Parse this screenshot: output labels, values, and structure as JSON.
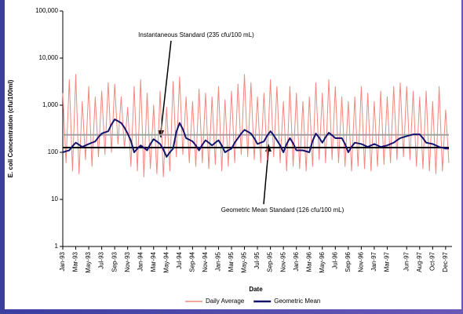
{
  "chart_data": {
    "type": "line",
    "y_label": "E. coli Concentration (cfu/100ml)",
    "x_label": "Date",
    "log_y": true,
    "ylim": [
      1,
      100000
    ],
    "yticks": [
      1,
      10,
      100,
      {
        "value": 1000,
        "label": "1,000"
      },
      {
        "value": 10000,
        "label": "10,000"
      },
      {
        "value": 100000,
        "label": "100,000"
      }
    ],
    "categories": [
      "Jan-93",
      null,
      null,
      null,
      "Mar-93",
      null,
      null,
      null,
      "May-93",
      null,
      null,
      null,
      "Jul-93",
      null,
      null,
      null,
      "Sep-93",
      null,
      null,
      null,
      "Nov-93",
      null,
      null,
      null,
      "Jan-94",
      null,
      null,
      null,
      "Mar-94",
      null,
      null,
      null,
      "May-94",
      null,
      null,
      null,
      "Jul-94",
      null,
      null,
      null,
      "Sep-94",
      null,
      null,
      null,
      "Nov-94",
      null,
      null,
      null,
      "Jan-95",
      null,
      null,
      null,
      "Mar-95",
      null,
      null,
      null,
      "May-95",
      null,
      null,
      null,
      "Jul-95",
      null,
      null,
      null,
      "Sep-95",
      null,
      null,
      null,
      "Nov-95",
      null,
      null,
      null,
      "Jan-96",
      null,
      null,
      null,
      "Mar-96",
      null,
      null,
      null,
      "May-96",
      null,
      null,
      null,
      "Jul-96",
      null,
      null,
      null,
      "Sep-96",
      null,
      null,
      null,
      "Nov-96",
      null,
      null,
      null,
      "Jan-97",
      null,
      null,
      null,
      "Mar-97",
      null,
      null,
      null,
      null,
      null,
      "Jun-97",
      null,
      null,
      null,
      "Aug-97",
      null,
      null,
      null,
      "Oct-97",
      null,
      null,
      null,
      "Dec-97",
      null
    ],
    "series": [
      {
        "name": "Daily Average",
        "color": "#f4867f",
        "width": 1,
        "values": [
          1800,
          60,
          3500,
          40,
          4500,
          35,
          1200,
          70,
          2500,
          50,
          1500,
          80,
          2000,
          90,
          3000,
          100,
          2800,
          150,
          1500,
          120,
          900,
          50,
          2500,
          40,
          3500,
          30,
          1800,
          45,
          1000,
          35,
          2000,
          30,
          900,
          40,
          3200,
          80,
          4000,
          90,
          1500,
          60,
          1200,
          50,
          2200,
          60,
          1800,
          45,
          1500,
          55,
          2500,
          40,
          1300,
          50,
          2000,
          60,
          2800,
          90,
          4500,
          80,
          3000,
          70,
          1500,
          60,
          1800,
          70,
          3500,
          80,
          2500,
          60,
          1200,
          40,
          2500,
          50,
          1800,
          45,
          1200,
          40,
          1500,
          50,
          3000,
          70,
          1800,
          60,
          3500,
          70,
          2500,
          60,
          1500,
          50,
          1200,
          40,
          1500,
          50,
          2500,
          45,
          1800,
          40,
          1200,
          50,
          2000,
          55,
          1500,
          60,
          2500,
          70,
          3000,
          80,
          2500,
          70,
          2000,
          50,
          1500,
          45,
          2000,
          40,
          1200,
          35,
          2500,
          40,
          800,
          60
        ]
      },
      {
        "name": "Geometric Mean",
        "color": "#14146e",
        "width": 2,
        "values": [
          100,
          105,
          110,
          135,
          160,
          145,
          130,
          140,
          150,
          160,
          170,
          210,
          250,
          265,
          280,
          390,
          500,
          460,
          420,
          335,
          250,
          175,
          100,
          120,
          140,
          125,
          110,
          150,
          190,
          170,
          150,
          115,
          80,
          100,
          120,
          270,
          420,
          310,
          200,
          185,
          170,
          140,
          110,
          145,
          180,
          160,
          140,
          160,
          180,
          140,
          100,
          110,
          120,
          160,
          200,
          250,
          300,
          275,
          250,
          200,
          150,
          160,
          170,
          225,
          280,
          230,
          180,
          140,
          100,
          150,
          200,
          155,
          110,
          110,
          110,
          105,
          100,
          175,
          250,
          205,
          160,
          210,
          260,
          230,
          200,
          200,
          200,
          150,
          100,
          130,
          160,
          155,
          150,
          140,
          130,
          140,
          150,
          140,
          130,
          135,
          140,
          150,
          160,
          180,
          200,
          210,
          220,
          230,
          240,
          240,
          240,
          200,
          160,
          155,
          150,
          140,
          130,
          125,
          120,
          120
        ]
      }
    ],
    "reference_lines": [
      {
        "value": 235,
        "color": "#a0a0a0",
        "annotation": "Instantaneous Standard (235 cfu/100 mL)"
      },
      {
        "value": 126,
        "color": "#000000",
        "annotation": "Geometric Mean Standard (126 cfu/100 mL)"
      }
    ]
  }
}
